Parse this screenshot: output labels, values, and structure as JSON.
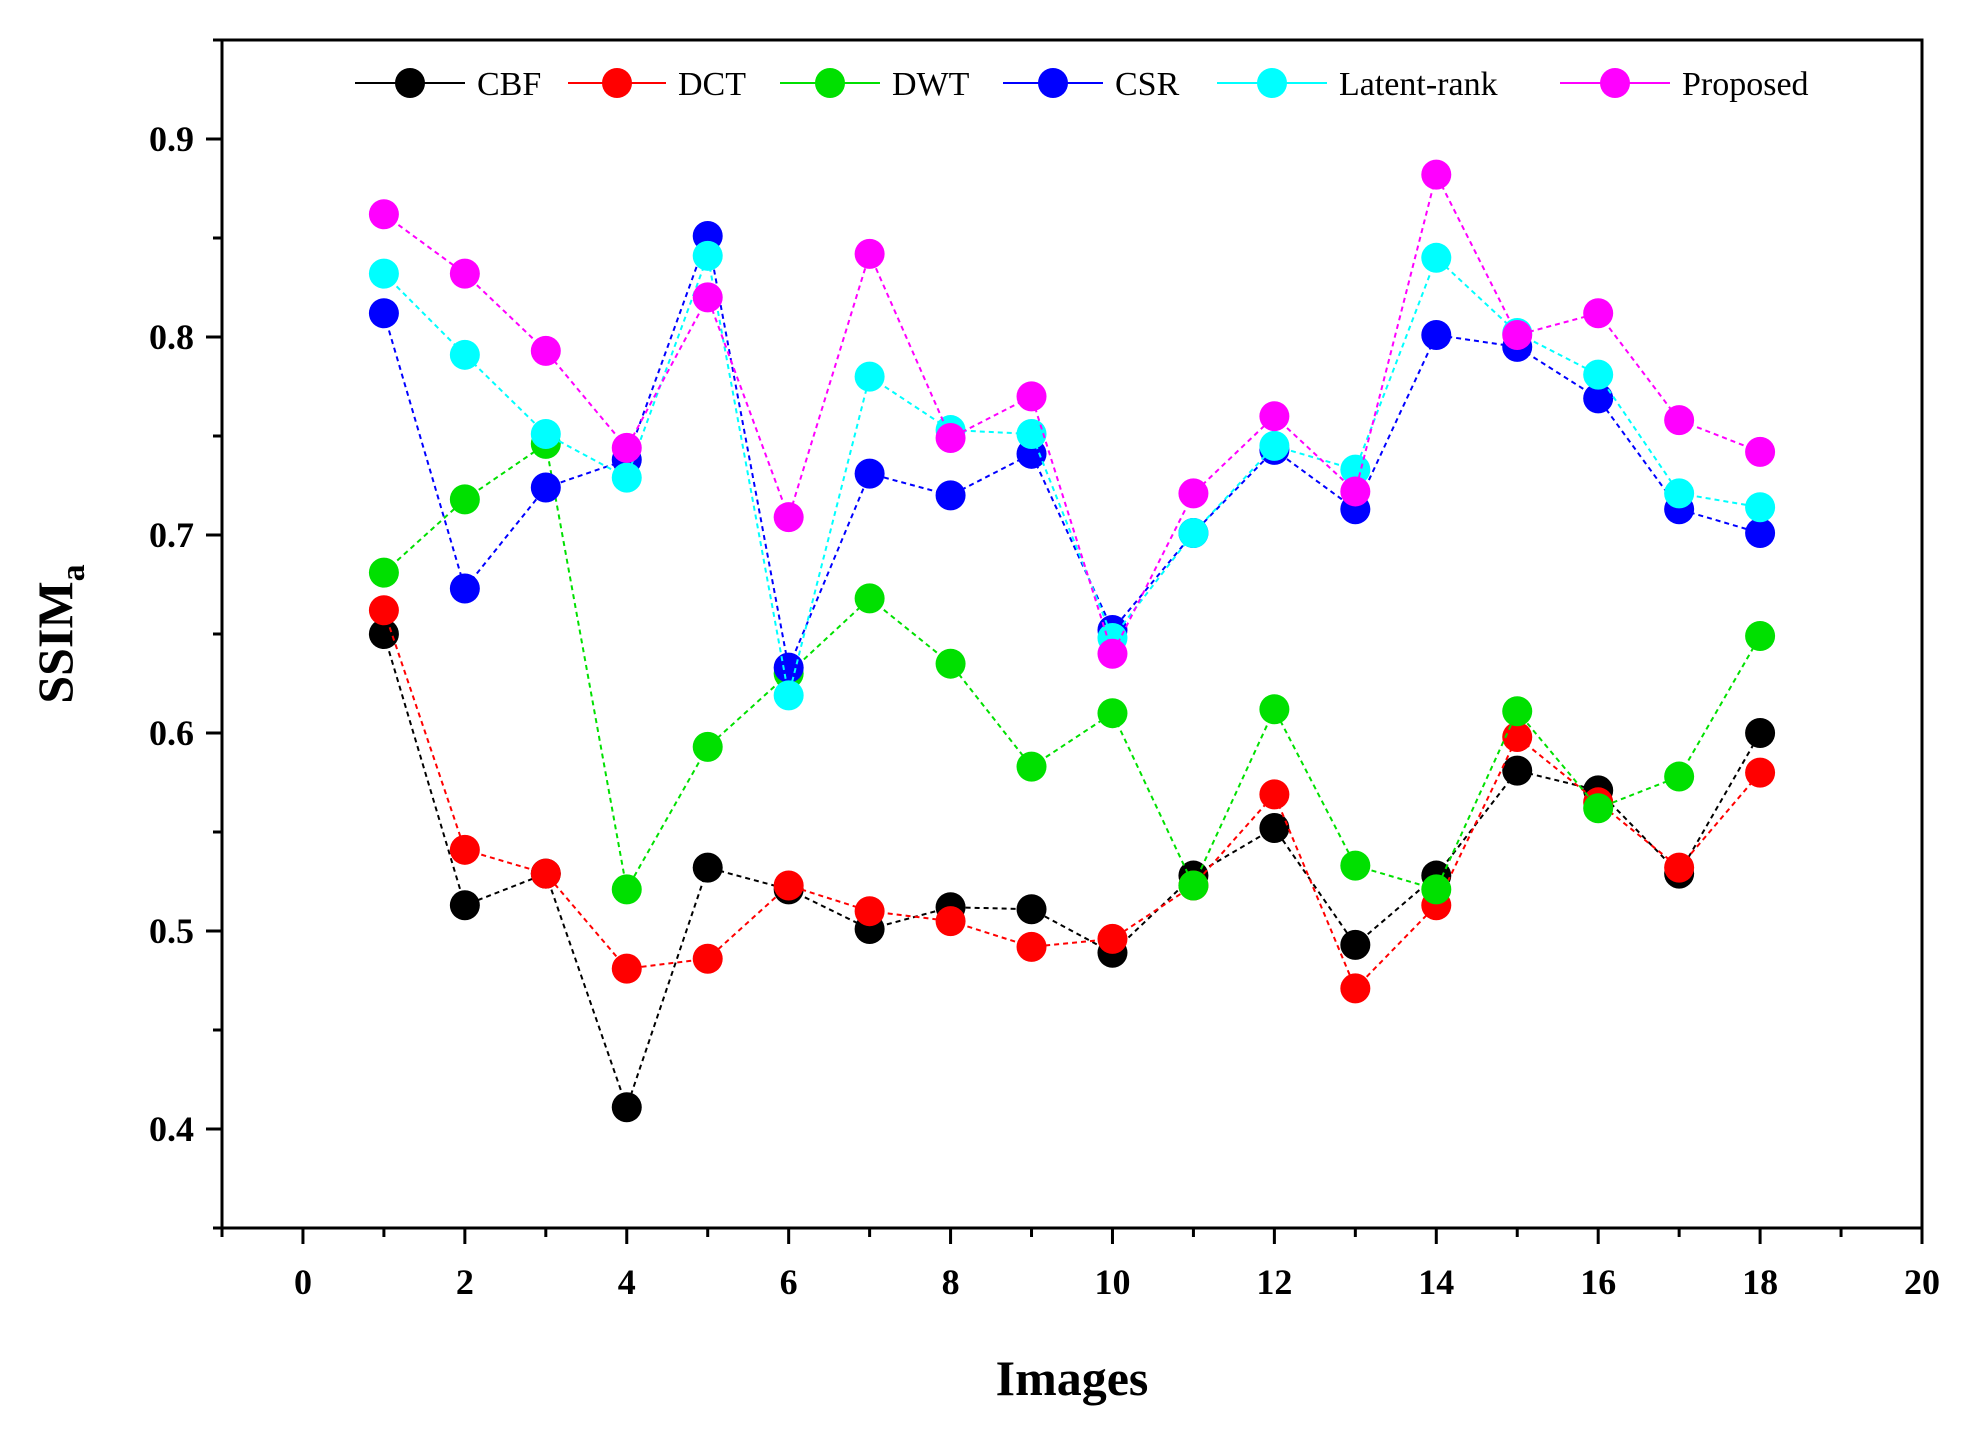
{
  "chart_data": {
    "type": "line",
    "title": "",
    "xlabel": "Images",
    "ylabel": {
      "main": "SSIM",
      "subscript": "a"
    },
    "xlim": [
      -1,
      20
    ],
    "ylim": [
      0.35,
      0.95
    ],
    "xticks": [
      0,
      2,
      4,
      6,
      8,
      10,
      12,
      14,
      16,
      18,
      20
    ],
    "xtick_labels": [
      "0",
      "2",
      "4",
      "6",
      "8",
      "10",
      "12",
      "14",
      "16",
      "18",
      "20"
    ],
    "yticks": [
      0.4,
      0.5,
      0.6,
      0.7,
      0.8,
      0.9
    ],
    "ytick_labels": [
      "0.4",
      "0.5",
      "0.6",
      "0.7",
      "0.8",
      "0.9"
    ],
    "grid": false,
    "legend_position": "top",
    "x": [
      1,
      2,
      3,
      4,
      5,
      6,
      7,
      8,
      9,
      10,
      11,
      12,
      13,
      14,
      15,
      16,
      17,
      18
    ],
    "series": [
      {
        "name": "CBF",
        "color": "#000000",
        "values": [
          0.65,
          0.513,
          0.529,
          0.411,
          0.532,
          0.521,
          0.501,
          0.512,
          0.511,
          0.489,
          0.528,
          0.552,
          0.493,
          0.528,
          0.581,
          0.571,
          0.529,
          0.6
        ]
      },
      {
        "name": "DCT",
        "color": "#ff0000",
        "values": [
          0.662,
          0.541,
          0.529,
          0.481,
          0.486,
          0.523,
          0.51,
          0.505,
          0.492,
          0.496,
          0.523,
          0.569,
          0.471,
          0.513,
          0.598,
          0.565,
          0.532,
          0.58
        ]
      },
      {
        "name": "DWT",
        "color": "#00e000",
        "values": [
          0.681,
          0.718,
          0.746,
          0.521,
          0.593,
          0.63,
          0.668,
          0.635,
          0.583,
          0.61,
          0.523,
          0.612,
          0.533,
          0.521,
          0.611,
          0.562,
          0.578,
          0.649
        ]
      },
      {
        "name": "CSR",
        "color": "#0000ff",
        "values": [
          0.812,
          0.673,
          0.724,
          0.738,
          0.851,
          0.633,
          0.731,
          0.72,
          0.741,
          0.652,
          0.701,
          0.743,
          0.713,
          0.801,
          0.795,
          0.769,
          0.713,
          0.701
        ]
      },
      {
        "name": "Latent-rank",
        "color": "#00ffff",
        "values": [
          0.832,
          0.791,
          0.751,
          0.729,
          0.841,
          0.619,
          0.78,
          0.753,
          0.751,
          0.648,
          0.701,
          0.745,
          0.733,
          0.84,
          0.802,
          0.781,
          0.721,
          0.714
        ]
      },
      {
        "name": "Proposed",
        "color": "#ff00ff",
        "values": [
          0.862,
          0.832,
          0.793,
          0.744,
          0.82,
          0.709,
          0.842,
          0.749,
          0.77,
          0.64,
          0.721,
          0.76,
          0.722,
          0.882,
          0.801,
          0.812,
          0.758,
          0.742
        ]
      }
    ]
  }
}
